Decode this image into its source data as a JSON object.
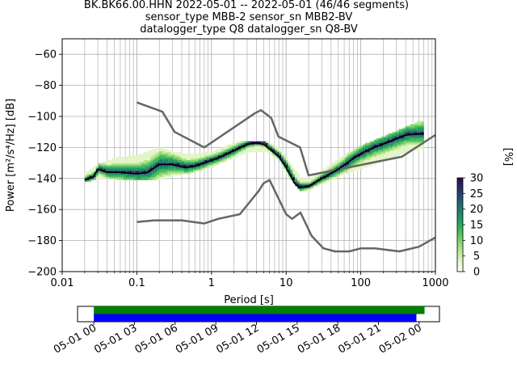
{
  "chart_data": {
    "type": "heatmap",
    "title_lines": [
      "BK.BK66.00.HHN   2022-05-01 -- 2022-05-01  (46/46 segments)",
      "sensor_type MBB-2 sensor_sn MBB2-BV",
      "datalogger_type Q8 datalogger_sn Q8-BV"
    ],
    "xlabel": "Period [s]",
    "ylabel": "Power [m²/s⁴/Hz] [dB]",
    "x_scale": "log",
    "xlim": [
      0.01,
      1000
    ],
    "ylim": [
      -200,
      -50
    ],
    "x_ticks": [
      0.01,
      0.1,
      1,
      10,
      100,
      1000
    ],
    "x_tick_labels": [
      "0.01",
      "0.1",
      "1",
      "10",
      "100",
      "1000"
    ],
    "y_ticks": [
      -200,
      -180,
      -160,
      -140,
      -120,
      -100,
      -80,
      -60
    ],
    "y_tick_labels": [
      "−200",
      "−180",
      "−160",
      "−140",
      "−120",
      "−100",
      "−80",
      "−60"
    ],
    "grid": true,
    "colorbar": {
      "label": "[%]",
      "range": [
        0,
        30
      ],
      "ticks": [
        0,
        5,
        10,
        15,
        20,
        25,
        30
      ],
      "tick_labels": [
        "0",
        "5",
        "10",
        "15",
        "20",
        "25",
        "30"
      ],
      "colors": [
        "#ffffff",
        "#e3f5c6",
        "#b5e690",
        "#7fd36a",
        "#3fb85a",
        "#1f9a5c",
        "#1f7a6e",
        "#274f7a",
        "#2d2a6a",
        "#2a0d4a"
      ]
    },
    "nhnm": {
      "x": [
        0.1,
        0.22,
        0.32,
        0.8,
        3.8,
        4.6,
        6.3,
        7.9,
        15.4,
        20,
        354.8,
        1000
      ],
      "y": [
        -91,
        -97,
        -110,
        -120,
        -98,
        -96,
        -101,
        -113,
        -120,
        -138,
        -126,
        -112
      ]
    },
    "nlnm": {
      "x": [
        0.1,
        0.17,
        0.4,
        0.8,
        1.24,
        2.4,
        4.3,
        5,
        6,
        10,
        12,
        15.6,
        21.9,
        31.6,
        45,
        70,
        101,
        154,
        328,
        600,
        1000
      ],
      "y": [
        -168,
        -167,
        -167,
        -169,
        -166,
        -163,
        -148,
        -143,
        -141,
        -163,
        -166,
        -162,
        -177,
        -185,
        -187,
        -187,
        -185,
        -185,
        -187,
        -184,
        -178
      ]
    },
    "median": {
      "x": [
        0.02,
        0.026,
        0.03,
        0.04,
        0.06,
        0.1,
        0.14,
        0.2,
        0.3,
        0.45,
        0.6,
        0.8,
        1.2,
        2,
        3,
        4,
        5,
        6,
        8,
        10,
        13,
        15,
        20,
        30,
        50,
        80,
        100,
        150,
        250,
        400,
        700
      ],
      "y": [
        -141,
        -139,
        -134,
        -136,
        -136,
        -137,
        -136,
        -131,
        -131,
        -133,
        -132,
        -130,
        -127,
        -122,
        -118,
        -117,
        -118,
        -121,
        -126,
        -133,
        -143,
        -146,
        -145,
        -140,
        -134,
        -127,
        -124,
        -120,
        -116,
        -112,
        -111
      ]
    },
    "heat_spread": {
      "x": [
        0.02,
        0.03,
        0.05,
        0.1,
        0.2,
        0.3,
        0.5,
        1,
        2,
        3,
        5,
        8,
        10,
        15,
        20,
        30,
        50,
        100,
        200,
        400,
        700
      ],
      "high": [
        -137,
        -132,
        -128,
        -126,
        -121,
        -124,
        -126,
        -124,
        -118,
        -117,
        -117,
        -122,
        -128,
        -141,
        -142,
        -136,
        -128,
        -120,
        -114,
        -108,
        -103
      ],
      "low": [
        -142,
        -140,
        -140,
        -141,
        -140,
        -138,
        -136,
        -132,
        -126,
        -123,
        -122,
        -128,
        -137,
        -148,
        -147,
        -143,
        -138,
        -133,
        -128,
        -123,
        -120
      ]
    },
    "availability": {
      "x_tick_labels": [
        "05-01 00",
        "05-01 03",
        "05-01 06",
        "05-01 09",
        "05-01 12",
        "05-01 15",
        "05-01 18",
        "05-01 21",
        "05-02 00"
      ],
      "bars": [
        {
          "color": "#008000",
          "start_hour": 0,
          "end_hour": 24.4
        },
        {
          "color": "#0000ff",
          "start_hour": 0,
          "end_hour": 23.8
        }
      ],
      "xlim_hours": [
        -1.2,
        25.5
      ]
    }
  }
}
